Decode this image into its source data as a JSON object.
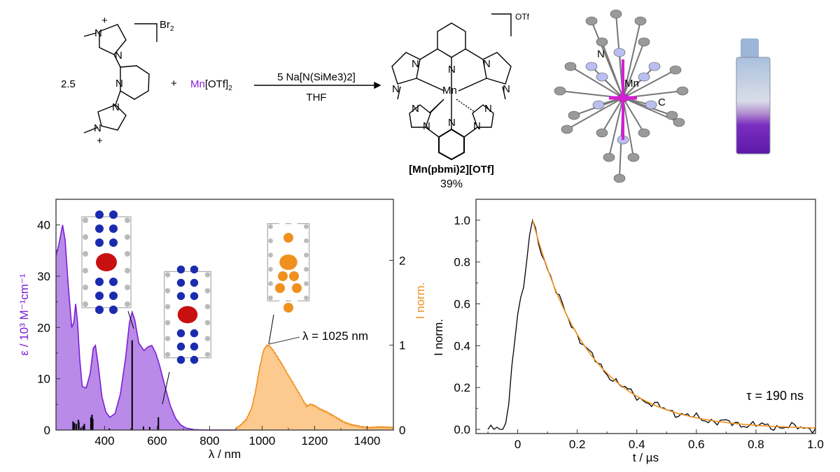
{
  "scheme": {
    "stoich": "2.5",
    "plus": "+",
    "cation_charge": "+",
    "counterion_reactant": "Br",
    "counterion_reactant_sub": "2",
    "mn_reagent_metal": "Mn",
    "mn_reagent_rest": "[OTf]",
    "mn_reagent_sub": "2",
    "reagent_above_arrow": "5 Na[N(SiMe3)2]",
    "solvent": "THF",
    "atom_n": "N",
    "product_metal": "Mn",
    "product_counterion": "OTf",
    "product_name": "[Mn(pbmi)2][OTf]",
    "yield": "39%",
    "crystal_labels": {
      "n": "N",
      "mn": "Mn",
      "c": "C"
    }
  },
  "colors": {
    "absorption": "#7a1fd6",
    "absorption_fill": "#b98ae8",
    "emission": "#f0901e",
    "emission_fill": "#fcc98f",
    "mn": "#8b1fd6",
    "fit": "#f0901e"
  },
  "chart_data": [
    {
      "type": "area",
      "title": "",
      "xlabel": "λ / nm",
      "ylabel": "ε / 10³ M⁻¹cm⁻¹",
      "y2label": "I norm.",
      "xlim": [
        215,
        1500
      ],
      "ylim": [
        0,
        45
      ],
      "y2lim": [
        0,
        2.72
      ],
      "xticks": [
        400,
        600,
        800,
        1000,
        1200,
        1400
      ],
      "yticks": [
        0,
        10,
        20,
        30,
        40
      ],
      "y2ticks": [
        0,
        1,
        2
      ],
      "annotation": "λ = 1025 nm",
      "series": [
        {
          "name": "absorption",
          "axis": "left",
          "x": [
            215,
            225,
            240,
            250,
            262,
            275,
            283,
            290,
            297,
            305,
            315,
            330,
            345,
            357,
            365,
            375,
            390,
            405,
            420,
            440,
            460,
            480,
            495,
            505,
            515,
            530,
            550,
            565,
            580,
            595,
            610,
            630,
            650,
            670,
            690,
            710,
            740,
            780,
            900
          ],
          "y": [
            34,
            36,
            40,
            37,
            28,
            20,
            21,
            24.6,
            21,
            14,
            8.5,
            8.2,
            11,
            16,
            16.5,
            13,
            6.5,
            3.5,
            2.5,
            3.2,
            7,
            14,
            21,
            23,
            21.5,
            17,
            15.5,
            16.2,
            16.5,
            15,
            12.5,
            8.5,
            4.8,
            2.3,
            1.0,
            0.4,
            0.1,
            0,
            0
          ]
        },
        {
          "name": "calculated transitions",
          "axis": "left",
          "type": "stick",
          "x": [
            280,
            285,
            292,
            300,
            302,
            310,
            318,
            323,
            348,
            352,
            355,
            418,
            505,
            548,
            572,
            605
          ],
          "y": [
            1.7,
            1.4,
            1.2,
            2.0,
            1.6,
            0.5,
            0.8,
            1.2,
            2.5,
            3.0,
            2.2,
            0.3,
            17.5,
            0.7,
            0.6,
            2.5
          ]
        },
        {
          "name": "emission",
          "axis": "right",
          "x": [
            900,
            920,
            940,
            960,
            975,
            990,
            1005,
            1015,
            1025,
            1040,
            1060,
            1080,
            1100,
            1120,
            1140,
            1160,
            1170,
            1185,
            1200,
            1220,
            1250,
            1280,
            1310,
            1340,
            1370,
            1400,
            1450,
            1500
          ],
          "y": [
            0.02,
            0.06,
            0.12,
            0.25,
            0.45,
            0.72,
            0.93,
            0.99,
            1.0,
            0.95,
            0.86,
            0.76,
            0.65,
            0.55,
            0.44,
            0.33,
            0.28,
            0.3,
            0.28,
            0.24,
            0.2,
            0.15,
            0.1,
            0.07,
            0.05,
            0.03,
            0.03,
            0.02
          ]
        }
      ]
    },
    {
      "type": "line",
      "title": "",
      "xlabel": "t / µs",
      "ylabel": "I norm.",
      "xlim": [
        -0.14,
        1.0
      ],
      "ylim": [
        -0.02,
        1.1
      ],
      "xticks": [
        0,
        0.2,
        0.4,
        0.6,
        0.8,
        1.0
      ],
      "xtick_labels": [
        "0",
        "0.2",
        "0.4",
        "0.6",
        "0.8",
        "1.0"
      ],
      "yticks": [
        0,
        0.2,
        0.4,
        0.6,
        0.8,
        1.0
      ],
      "ytick_labels": [
        "0.0",
        "0.2",
        "0.4",
        "0.6",
        "0.8",
        "1.0"
      ],
      "annotation": "τ = 190 ns",
      "series": [
        {
          "name": "decay",
          "x": [
            -0.1,
            -0.09,
            -0.08,
            -0.07,
            -0.06,
            -0.05,
            -0.04,
            -0.03,
            -0.02,
            -0.01,
            0,
            0.01,
            0.02,
            0.03,
            0.04,
            0.05
          ],
          "y": [
            0,
            0.02,
            0,
            0.01,
            0,
            0,
            0.03,
            0.12,
            0.3,
            0.42,
            0.55,
            0.63,
            0.68,
            0.8,
            0.93,
            1.0
          ],
          "tail_model": "exponential with noise"
        },
        {
          "name": "fit",
          "tau_us": 0.19,
          "t0": 0.05,
          "amplitude": 1.0,
          "x_range": [
            0.05,
            1.0
          ]
        }
      ]
    }
  ]
}
